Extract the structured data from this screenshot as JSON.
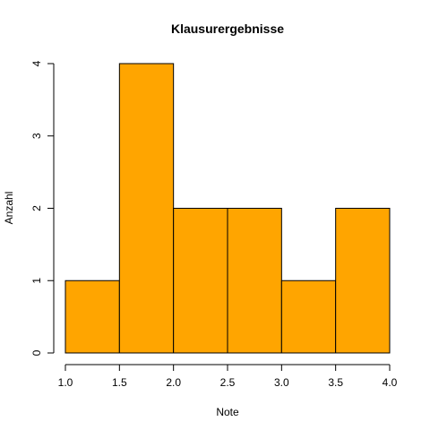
{
  "chart_data": {
    "type": "bar",
    "title": "Klausurergebnisse",
    "xlabel": "Note",
    "ylabel": "Anzahl",
    "bins": [
      {
        "start": 1.0,
        "end": 1.5,
        "count": 1
      },
      {
        "start": 1.5,
        "end": 2.0,
        "count": 4
      },
      {
        "start": 2.0,
        "end": 2.5,
        "count": 2
      },
      {
        "start": 2.5,
        "end": 3.0,
        "count": 2
      },
      {
        "start": 3.0,
        "end": 3.5,
        "count": 1
      },
      {
        "start": 3.5,
        "end": 4.0,
        "count": 2
      }
    ],
    "xticks": [
      "1.0",
      "1.5",
      "2.0",
      "2.5",
      "3.0",
      "3.5",
      "4.0"
    ],
    "yticks": [
      "0",
      "1",
      "2",
      "3",
      "4"
    ],
    "xlim": [
      1.0,
      4.0
    ],
    "ylim": [
      0,
      4
    ],
    "bar_color": "#FFA500",
    "grid": false,
    "legend": "none"
  }
}
